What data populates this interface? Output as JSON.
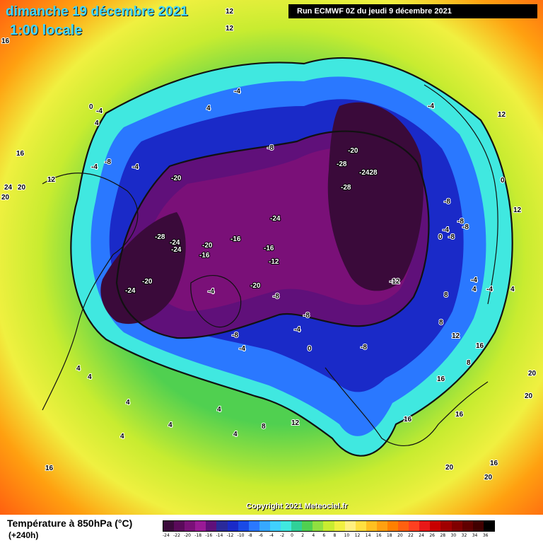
{
  "header": {
    "valid_date": "dimanche 19 décembre 2021",
    "local_time": "1:00 locale",
    "run_info": "Run ECMWF 0Z du jeudi 9 décembre 2021"
  },
  "map": {
    "copyright": "Copyright 2021 Meteociel.fr",
    "contour_labels": [
      {
        "text": "12",
        "u": 0.415,
        "v": 0.013,
        "dark": false
      },
      {
        "text": "12",
        "u": 0.415,
        "v": 0.045,
        "dark": false
      },
      {
        "text": "16",
        "u": 0.003,
        "v": 0.07,
        "dark": false
      },
      {
        "text": "-4",
        "u": 0.431,
        "v": 0.168,
        "dark": false
      },
      {
        "text": "4",
        "u": 0.38,
        "v": 0.2,
        "dark": false
      },
      {
        "text": "0",
        "u": 0.164,
        "v": 0.198,
        "dark": false
      },
      {
        "text": "-4",
        "u": 0.177,
        "v": 0.206,
        "dark": false
      },
      {
        "text": "4",
        "u": 0.174,
        "v": 0.23,
        "dark": false
      },
      {
        "text": "-4",
        "u": 0.788,
        "v": 0.197,
        "dark": false
      },
      {
        "text": "12",
        "u": 0.917,
        "v": 0.213,
        "dark": false
      },
      {
        "text": "16",
        "u": 0.03,
        "v": 0.288,
        "dark": false
      },
      {
        "text": "-8",
        "u": 0.492,
        "v": 0.278,
        "dark": false
      },
      {
        "text": "-20",
        "u": 0.64,
        "v": 0.283,
        "dark": true
      },
      {
        "text": "-4",
        "u": 0.168,
        "v": 0.314,
        "dark": false
      },
      {
        "text": "-8",
        "u": 0.193,
        "v": 0.305,
        "dark": false
      },
      {
        "text": "-4",
        "u": 0.244,
        "v": 0.315,
        "dark": false
      },
      {
        "text": "-28",
        "u": 0.62,
        "v": 0.309,
        "dark": true
      },
      {
        "text": "-2428",
        "u": 0.662,
        "v": 0.325,
        "dark": true
      },
      {
        "text": "24",
        "u": 0.008,
        "v": 0.354,
        "dark": false
      },
      {
        "text": "20",
        "u": 0.033,
        "v": 0.354,
        "dark": false
      },
      {
        "text": "12",
        "u": 0.087,
        "v": 0.339,
        "dark": false
      },
      {
        "text": "-20",
        "u": 0.315,
        "v": 0.336,
        "dark": true
      },
      {
        "text": "-28",
        "u": 0.628,
        "v": 0.355,
        "dark": true
      },
      {
        "text": "0",
        "u": 0.922,
        "v": 0.341,
        "dark": false
      },
      {
        "text": "20",
        "u": 0.003,
        "v": 0.373,
        "dark": false
      },
      {
        "text": "-8",
        "u": 0.818,
        "v": 0.382,
        "dark": false
      },
      {
        "text": "12",
        "u": 0.945,
        "v": 0.399,
        "dark": false
      },
      {
        "text": "-24",
        "u": 0.497,
        "v": 0.415,
        "dark": true
      },
      {
        "text": "-8",
        "u": 0.843,
        "v": 0.421,
        "dark": false
      },
      {
        "text": "-4",
        "u": 0.815,
        "v": 0.437,
        "dark": false
      },
      {
        "text": "-8",
        "u": 0.852,
        "v": 0.432,
        "dark": false
      },
      {
        "text": "-28",
        "u": 0.285,
        "v": 0.451,
        "dark": true
      },
      {
        "text": "-16",
        "u": 0.424,
        "v": 0.455,
        "dark": true
      },
      {
        "text": "-24",
        "u": 0.313,
        "v": 0.461,
        "dark": true
      },
      {
        "text": "-20",
        "u": 0.372,
        "v": 0.467,
        "dark": true
      },
      {
        "text": "0",
        "u": 0.807,
        "v": 0.45,
        "dark": false
      },
      {
        "text": "-8",
        "u": 0.826,
        "v": 0.45,
        "dark": false
      },
      {
        "text": "-24",
        "u": 0.315,
        "v": 0.475,
        "dark": true
      },
      {
        "text": "-16",
        "u": 0.486,
        "v": 0.472,
        "dark": true
      },
      {
        "text": "-16",
        "u": 0.367,
        "v": 0.486,
        "dark": true
      },
      {
        "text": "-12",
        "u": 0.495,
        "v": 0.499,
        "dark": true
      },
      {
        "text": "-20",
        "u": 0.262,
        "v": 0.537,
        "dark": true
      },
      {
        "text": "-12",
        "u": 0.717,
        "v": 0.537,
        "dark": false
      },
      {
        "text": "-4",
        "u": 0.867,
        "v": 0.535,
        "dark": false
      },
      {
        "text": "4",
        "u": 0.87,
        "v": 0.552,
        "dark": false
      },
      {
        "text": "-4",
        "u": 0.896,
        "v": 0.552,
        "dark": false
      },
      {
        "text": "4",
        "u": 0.94,
        "v": 0.552,
        "dark": false
      },
      {
        "text": "-24",
        "u": 0.231,
        "v": 0.555,
        "dark": true
      },
      {
        "text": "-4",
        "u": 0.383,
        "v": 0.557,
        "dark": false
      },
      {
        "text": "-20",
        "u": 0.461,
        "v": 0.546,
        "dark": true
      },
      {
        "text": "-8",
        "u": 0.502,
        "v": 0.566,
        "dark": false
      },
      {
        "text": "8",
        "u": 0.818,
        "v": 0.563,
        "dark": false
      },
      {
        "text": "-8",
        "u": 0.558,
        "v": 0.603,
        "dark": false
      },
      {
        "text": "-4",
        "u": 0.542,
        "v": 0.631,
        "dark": false
      },
      {
        "text": "8",
        "u": 0.808,
        "v": 0.617,
        "dark": false
      },
      {
        "text": "-8",
        "u": 0.427,
        "v": 0.641,
        "dark": false
      },
      {
        "text": "12",
        "u": 0.832,
        "v": 0.643,
        "dark": false
      },
      {
        "text": "16",
        "u": 0.876,
        "v": 0.662,
        "dark": false
      },
      {
        "text": "-4",
        "u": 0.44,
        "v": 0.668,
        "dark": false
      },
      {
        "text": "0",
        "u": 0.566,
        "v": 0.668,
        "dark": false
      },
      {
        "text": "-8",
        "u": 0.664,
        "v": 0.665,
        "dark": false
      },
      {
        "text": "8",
        "u": 0.859,
        "v": 0.695,
        "dark": false
      },
      {
        "text": "4",
        "u": 0.14,
        "v": 0.706,
        "dark": false
      },
      {
        "text": "4",
        "u": 0.161,
        "v": 0.722,
        "dark": false
      },
      {
        "text": "20",
        "u": 0.973,
        "v": 0.716,
        "dark": false
      },
      {
        "text": "16",
        "u": 0.805,
        "v": 0.727,
        "dark": false
      },
      {
        "text": "20",
        "u": 0.966,
        "v": 0.76,
        "dark": false
      },
      {
        "text": "4",
        "u": 0.232,
        "v": 0.772,
        "dark": false
      },
      {
        "text": "4",
        "u": 0.4,
        "v": 0.786,
        "dark": false
      },
      {
        "text": "4",
        "u": 0.31,
        "v": 0.816,
        "dark": false
      },
      {
        "text": "16",
        "u": 0.838,
        "v": 0.796,
        "dark": false
      },
      {
        "text": "16",
        "u": 0.744,
        "v": 0.805,
        "dark": false
      },
      {
        "text": "8",
        "u": 0.482,
        "v": 0.819,
        "dark": false
      },
      {
        "text": "12",
        "u": 0.537,
        "v": 0.812,
        "dark": false
      },
      {
        "text": "4",
        "u": 0.222,
        "v": 0.838,
        "dark": false
      },
      {
        "text": "4",
        "u": 0.43,
        "v": 0.834,
        "dark": false
      },
      {
        "text": "20",
        "u": 0.82,
        "v": 0.898,
        "dark": false
      },
      {
        "text": "16",
        "u": 0.902,
        "v": 0.89,
        "dark": false
      },
      {
        "text": "16",
        "u": 0.083,
        "v": 0.9,
        "dark": false
      },
      {
        "text": "20",
        "u": 0.892,
        "v": 0.918,
        "dark": false
      }
    ]
  },
  "footer": {
    "title": "Température à 850hPa (°C)",
    "subtitle": "(+240h)"
  },
  "legend": {
    "labels": [
      "-24",
      "-22",
      "-20",
      "-18",
      "-16",
      "-14",
      "-12",
      "-10",
      "-8",
      "-6",
      "-4",
      "-2",
      "0",
      "2",
      "4",
      "6",
      "8",
      "10",
      "12",
      "14",
      "16",
      "18",
      "20",
      "22",
      "24",
      "26",
      "28",
      "30",
      "32",
      "34",
      "36"
    ],
    "colors": [
      "#3a0a3a",
      "#5a0a5a",
      "#7a1078",
      "#9a1a96",
      "#60107a",
      "#2a2a9a",
      "#1a2ac8",
      "#1a4ae6",
      "#2a78ff",
      "#36a8ff",
      "#40d0ff",
      "#40e8e0",
      "#30d098",
      "#50d050",
      "#90e040",
      "#c8ec30",
      "#f0f040",
      "#fff080",
      "#ffe040",
      "#ffc020",
      "#ffa010",
      "#ff8000",
      "#ff6010",
      "#ff4020",
      "#e81818",
      "#c80000",
      "#a00000",
      "#800000",
      "#600000",
      "#400000",
      "#000000"
    ]
  }
}
